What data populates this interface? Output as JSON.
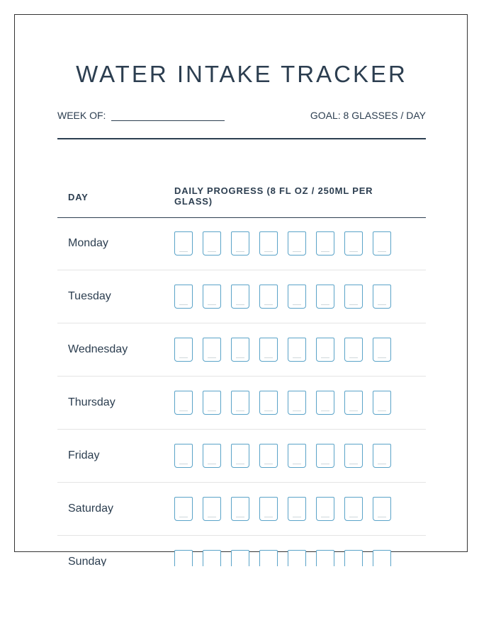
{
  "title": "WATER INTAKE TRACKER",
  "week_of_label": "WEEK OF:",
  "goal_label": "GOAL: 8 GLASSES / DAY",
  "table": {
    "col_day": "DAY",
    "col_progress": "DAILY PROGRESS (8 FL OZ / 250ML PER GLASS)"
  },
  "glasses_per_day": 8,
  "days": [
    {
      "name": "Monday",
      "filled": 0
    },
    {
      "name": "Tuesday",
      "filled": 0
    },
    {
      "name": "Wednesday",
      "filled": 0
    },
    {
      "name": "Thursday",
      "filled": 0
    },
    {
      "name": "Friday",
      "filled": 0
    },
    {
      "name": "Saturday",
      "filled": 0
    },
    {
      "name": "Sunday",
      "filled": 0
    }
  ],
  "colors": {
    "text": "#2c3e50",
    "glass_border": "#5aa3c8",
    "row_divider": "#e4e4e4"
  }
}
